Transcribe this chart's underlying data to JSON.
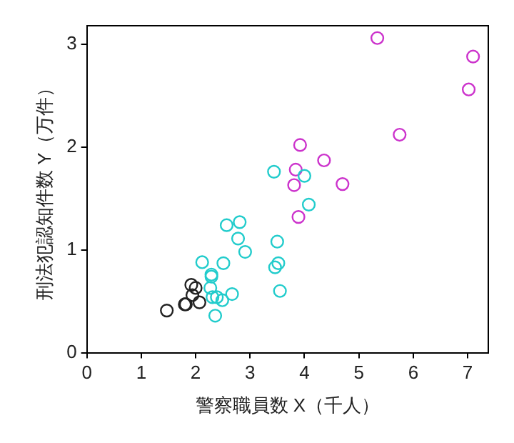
{
  "chart_data": {
    "type": "scatter",
    "xlabel": "警察職員数 X（千人）",
    "ylabel": "刑法犯認知件数 Y（万件）",
    "xlim": [
      0,
      7.38
    ],
    "xticks": [
      0,
      1,
      2,
      3,
      4,
      5,
      6,
      7
    ],
    "ylim": [
      0,
      3.18
    ],
    "yticks": [
      0,
      1,
      2,
      3
    ],
    "grid": false,
    "legend": false,
    "marker": "circle",
    "series": [
      {
        "color": "#222222",
        "x": [
          1.47,
          1.8,
          1.82,
          2.07,
          1.92,
          2.0,
          1.94
        ],
        "values": [
          0.41,
          0.47,
          0.47,
          0.49,
          0.66,
          0.63,
          0.56
        ]
      },
      {
        "color": "#22cccc",
        "x": [
          2.12,
          2.29,
          2.29,
          2.27,
          2.31,
          2.39,
          2.36,
          2.49,
          2.67,
          2.51,
          2.57,
          2.81,
          2.78,
          2.91,
          3.44,
          3.5,
          3.46,
          3.52,
          3.55,
          4.0,
          4.08
        ],
        "values": [
          0.88,
          0.76,
          0.74,
          0.63,
          0.54,
          0.54,
          0.36,
          0.51,
          0.57,
          0.87,
          1.24,
          1.27,
          1.11,
          0.98,
          1.76,
          1.08,
          0.83,
          0.87,
          0.6,
          1.72,
          1.44
        ]
      },
      {
        "color": "#cc33cc",
        "x": [
          5.34,
          7.1,
          7.02,
          5.75,
          3.92,
          3.84,
          4.36,
          3.81,
          4.7,
          3.89
        ],
        "values": [
          3.06,
          2.88,
          2.56,
          2.12,
          2.02,
          1.78,
          1.87,
          1.63,
          1.64,
          1.32
        ]
      }
    ]
  }
}
